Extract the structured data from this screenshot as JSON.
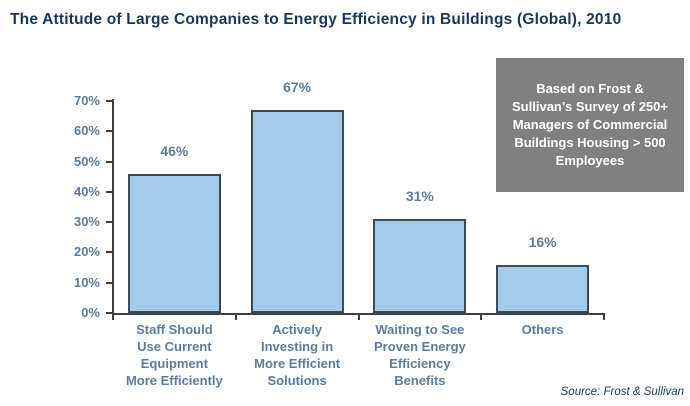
{
  "title": "The Attitude of Large Companies to Energy Efficiency in Buildings (Global), 2010",
  "note_box": {
    "text": "Based on Frost & Sullivan’s Survey of 250+ Managers of Commercial Buildings Housing > 500 Employees",
    "bg": "#808080",
    "text_color": "#ffffff"
  },
  "source": "Source: Frost & Sullivan",
  "colors": {
    "title": "#17375d",
    "axis_label": "#5d7c9b",
    "value_label": "#5d7c9b",
    "bar_fill": "#a3cbe9",
    "bar_border": "#3b4a58",
    "axis_line": "#3f3f3f"
  },
  "chart_data": {
    "type": "bar",
    "title": "The Attitude of Large Companies to Energy Efficiency in Buildings (Global), 2010",
    "categories": [
      "Staff Should Use Current Equipment More Efficiently",
      "Actively Investing in More Efficient Solutions",
      "Waiting to See Proven Energy Efficiency Benefits",
      "Others"
    ],
    "category_lines": [
      [
        "Staff Should",
        "Use Current",
        "Equipment",
        "More Efficiently"
      ],
      [
        "Actively",
        "Investing in",
        "More Efficient",
        "Solutions"
      ],
      [
        "Waiting to See",
        "Proven Energy",
        "Efficiency",
        "Benefits"
      ],
      [
        "Others"
      ]
    ],
    "values": [
      46,
      67,
      31,
      16
    ],
    "value_labels": [
      "46%",
      "67%",
      "31%",
      "16%"
    ],
    "xlabel": "",
    "ylabel": "",
    "ylim": [
      0,
      70
    ],
    "ytick_step": 10,
    "ytick_labels": [
      "0%",
      "10%",
      "20%",
      "30%",
      "40%",
      "50%",
      "60%",
      "70%"
    ],
    "grid": false,
    "legend": "none",
    "annotation": "Based on Frost & Sullivan’s Survey of 250+ Managers of Commercial Buildings Housing > 500 Employees",
    "source": "Source: Frost & Sullivan"
  }
}
